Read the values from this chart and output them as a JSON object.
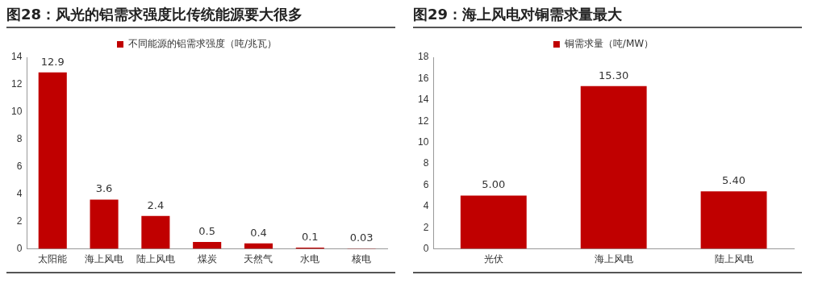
{
  "chart_data": [
    {
      "type": "bar",
      "title": "图28：风光的铝需求强度比传统能源要大很多",
      "categories": [
        "太阳能",
        "海上风电",
        "陆上风电",
        "煤炭",
        "天然气",
        "水电",
        "核电"
      ],
      "series": [
        {
          "name": "不同能源的铝需求强度（吨/兆瓦）",
          "color": "#c00000",
          "values": [
            12.9,
            3.6,
            2.4,
            0.5,
            0.4,
            0.1,
            0.03
          ]
        }
      ],
      "ylim": [
        0,
        14
      ],
      "yticks": [
        0,
        2,
        4,
        6,
        8,
        10,
        12,
        14
      ],
      "data_labels": true,
      "legend": "top",
      "grid": false
    },
    {
      "type": "bar",
      "title": "图29：海上风电对铜需求量最大",
      "categories": [
        "光伏",
        "海上风电",
        "陆上风电"
      ],
      "series": [
        {
          "name": "铜需求量（吨/MW）",
          "color": "#c00000",
          "values": [
            5.0,
            15.3,
            5.4
          ],
          "value_labels": [
            "5.00",
            "15.30",
            "5.40"
          ]
        }
      ],
      "ylim": [
        0,
        18
      ],
      "yticks": [
        0,
        2,
        4,
        6,
        8,
        10,
        12,
        14,
        16,
        18
      ],
      "legend": "top",
      "grid": false
    }
  ]
}
